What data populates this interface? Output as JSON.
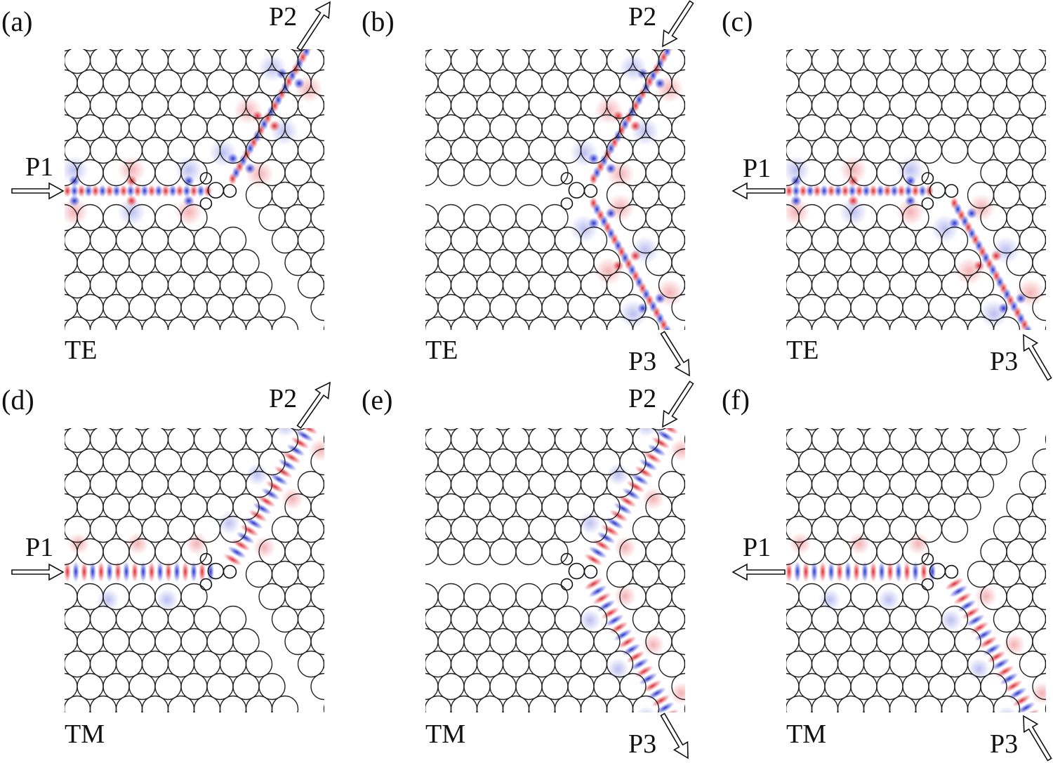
{
  "panels": [
    {
      "id": "a",
      "label": "(a)",
      "polarization": "TE",
      "ports": [
        {
          "name": "P1",
          "direction": "in"
        },
        {
          "name": "P2",
          "direction": "out"
        }
      ]
    },
    {
      "id": "b",
      "label": "(b)",
      "polarization": "TE",
      "ports": [
        {
          "name": "P2",
          "direction": "in"
        },
        {
          "name": "P3",
          "direction": "out"
        }
      ]
    },
    {
      "id": "c",
      "label": "(c)",
      "polarization": "TE",
      "ports": [
        {
          "name": "P1",
          "direction": "out"
        },
        {
          "name": "P3",
          "direction": "in"
        }
      ]
    },
    {
      "id": "d",
      "label": "(d)",
      "polarization": "TM",
      "ports": [
        {
          "name": "P1",
          "direction": "in"
        },
        {
          "name": "P2",
          "direction": "out"
        }
      ]
    },
    {
      "id": "e",
      "label": "(e)",
      "polarization": "TM",
      "ports": [
        {
          "name": "P2",
          "direction": "in"
        },
        {
          "name": "P3",
          "direction": "out"
        }
      ]
    },
    {
      "id": "f",
      "label": "(f)",
      "polarization": "TM",
      "ports": [
        {
          "name": "P1",
          "direction": "out"
        },
        {
          "name": "P3",
          "direction": "in"
        }
      ]
    }
  ],
  "colors": {
    "field_positive": "#e0202a",
    "field_negative": "#1f2bd0",
    "rod_outline": "#222222",
    "background": "#ffffff"
  }
}
